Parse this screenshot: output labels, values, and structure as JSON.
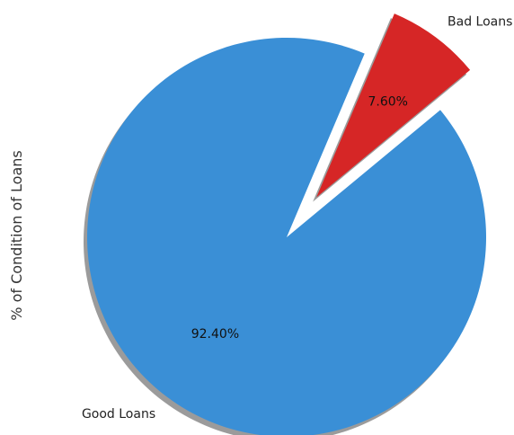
{
  "chart_data": {
    "type": "pie",
    "ylabel": "% of Condition of Loans",
    "labels": [
      "Good Loans",
      "Bad Loans"
    ],
    "values": [
      92.4,
      7.6
    ],
    "percent_labels": [
      "92.40%",
      "7.60%"
    ],
    "colors": [
      "#3a8fd6",
      "#d62626"
    ],
    "explode": [
      0,
      0.25
    ],
    "shadow": true
  }
}
